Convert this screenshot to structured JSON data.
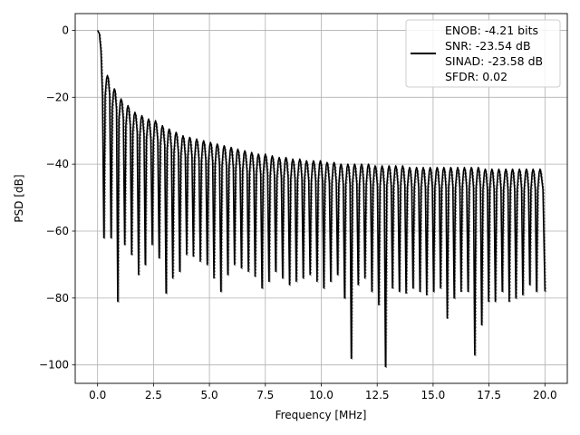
{
  "chart_data": {
    "type": "line",
    "title": "",
    "xlabel": "Frequency [MHz]",
    "ylabel": "PSD [dB]",
    "xlim": [
      -1.0,
      21.0
    ],
    "ylim": [
      -105.5,
      5.0
    ],
    "x_ticks": [
      0.0,
      2.5,
      5.0,
      7.5,
      10.0,
      12.5,
      15.0,
      17.5,
      20.0
    ],
    "x_tick_labels": [
      "0.0",
      "2.5",
      "5.0",
      "7.5",
      "10.0",
      "12.5",
      "15.0",
      "17.5",
      "20.0"
    ],
    "y_ticks": [
      0,
      -20,
      -40,
      -60,
      -80,
      -100
    ],
    "y_tick_labels": [
      "0",
      "−20",
      "−40",
      "−60",
      "−80",
      "−100"
    ],
    "grid": true,
    "line_color": "#000000",
    "legend": {
      "placement": "top-right",
      "entries": [
        "ENOB: -4.21 bits",
        "SNR: -23.54 dB",
        "SINAD: -23.58 dB",
        "SFDR: 0.02"
      ]
    },
    "series": [
      {
        "lobe_peaks": [
          [
            0.0,
            0.0
          ],
          [
            0.44,
            -13.5
          ],
          [
            0.75,
            -17.5
          ],
          [
            1.05,
            -20.5
          ],
          [
            1.36,
            -22.5
          ],
          [
            1.67,
            -24.5
          ],
          [
            1.98,
            -25.5
          ],
          [
            2.28,
            -26.5
          ],
          [
            2.59,
            -27.0
          ],
          [
            2.9,
            -28.5
          ],
          [
            3.2,
            -29.5
          ],
          [
            3.51,
            -30.5
          ],
          [
            3.82,
            -31.5
          ],
          [
            4.12,
            -32.0
          ],
          [
            4.43,
            -32.5
          ],
          [
            4.74,
            -33.0
          ],
          [
            5.05,
            -33.5
          ],
          [
            5.35,
            -34.0
          ],
          [
            5.66,
            -34.5
          ],
          [
            5.97,
            -35.0
          ],
          [
            6.27,
            -35.5
          ],
          [
            6.58,
            -36.0
          ],
          [
            6.89,
            -36.5
          ],
          [
            7.19,
            -37.0
          ],
          [
            7.5,
            -37.0
          ],
          [
            7.81,
            -37.5
          ],
          [
            8.12,
            -38.0
          ],
          [
            8.42,
            -38.0
          ],
          [
            8.73,
            -38.5
          ],
          [
            9.04,
            -38.5
          ],
          [
            9.34,
            -39.0
          ],
          [
            9.65,
            -39.0
          ],
          [
            9.96,
            -39.0
          ],
          [
            10.26,
            -39.5
          ],
          [
            10.57,
            -39.5
          ],
          [
            10.88,
            -40.0
          ],
          [
            11.19,
            -40.0
          ],
          [
            11.49,
            -40.0
          ],
          [
            11.8,
            -40.0
          ],
          [
            12.11,
            -40.0
          ],
          [
            12.41,
            -40.5
          ],
          [
            12.72,
            -40.5
          ],
          [
            13.03,
            -40.5
          ],
          [
            13.33,
            -40.5
          ],
          [
            13.64,
            -40.5
          ],
          [
            13.95,
            -41.0
          ],
          [
            14.26,
            -41.0
          ],
          [
            14.56,
            -41.0
          ],
          [
            14.87,
            -41.0
          ],
          [
            15.18,
            -41.0
          ],
          [
            15.48,
            -41.0
          ],
          [
            15.79,
            -41.0
          ],
          [
            16.1,
            -41.0
          ],
          [
            16.4,
            -41.0
          ],
          [
            16.71,
            -41.0
          ],
          [
            17.02,
            -41.0
          ],
          [
            17.33,
            -41.5
          ],
          [
            17.63,
            -41.5
          ],
          [
            17.94,
            -41.5
          ],
          [
            18.25,
            -41.5
          ],
          [
            18.55,
            -41.5
          ],
          [
            18.86,
            -41.5
          ],
          [
            19.17,
            -41.5
          ],
          [
            19.47,
            -41.5
          ],
          [
            19.78,
            -41.5
          ]
        ],
        "null_minima": [
          [
            0.28,
            -62.0
          ],
          [
            0.6,
            -62.0
          ],
          [
            0.9,
            -81.0
          ],
          [
            1.21,
            -64.0
          ],
          [
            1.52,
            -67.0
          ],
          [
            1.83,
            -73.0
          ],
          [
            2.13,
            -70.0
          ],
          [
            2.44,
            -64.0
          ],
          [
            2.75,
            -68.0
          ],
          [
            3.06,
            -78.5
          ],
          [
            3.36,
            -74.0
          ],
          [
            3.67,
            -72.0
          ],
          [
            3.98,
            -67.0
          ],
          [
            4.28,
            -67.5
          ],
          [
            4.59,
            -69.0
          ],
          [
            4.9,
            -70.0
          ],
          [
            5.2,
            -74.0
          ],
          [
            5.51,
            -78.0
          ],
          [
            5.82,
            -73.0
          ],
          [
            6.12,
            -70.0
          ],
          [
            6.43,
            -71.0
          ],
          [
            6.74,
            -72.0
          ],
          [
            7.04,
            -73.5
          ],
          [
            7.35,
            -77.0
          ],
          [
            7.66,
            -75.0
          ],
          [
            7.96,
            -72.0
          ],
          [
            8.27,
            -74.0
          ],
          [
            8.58,
            -76.0
          ],
          [
            8.88,
            -75.0
          ],
          [
            9.19,
            -74.0
          ],
          [
            9.5,
            -73.0
          ],
          [
            9.81,
            -75.0
          ],
          [
            10.11,
            -77.0
          ],
          [
            10.42,
            -75.0
          ],
          [
            10.73,
            -73.0
          ],
          [
            11.04,
            -80.0
          ],
          [
            11.34,
            -98.0
          ],
          [
            11.65,
            -76.0
          ],
          [
            11.95,
            -74.0
          ],
          [
            12.26,
            -78.0
          ],
          [
            12.57,
            -82.0
          ],
          [
            12.87,
            -100.5
          ],
          [
            13.18,
            -77.0
          ],
          [
            13.49,
            -78.0
          ],
          [
            13.79,
            -78.5
          ],
          [
            14.1,
            -77.0
          ],
          [
            14.41,
            -78.0
          ],
          [
            14.71,
            -79.0
          ],
          [
            15.02,
            -78.0
          ],
          [
            15.33,
            -77.0
          ],
          [
            15.63,
            -86.0
          ],
          [
            15.94,
            -80.0
          ],
          [
            16.25,
            -78.0
          ],
          [
            16.56,
            -78.0
          ],
          [
            16.86,
            -97.0
          ],
          [
            17.17,
            -88.0
          ],
          [
            17.48,
            -81.0
          ],
          [
            17.78,
            -81.0
          ],
          [
            18.09,
            -78.0
          ],
          [
            18.4,
            -81.0
          ],
          [
            18.7,
            -80.0
          ],
          [
            19.01,
            -79.0
          ],
          [
            19.32,
            -76.0
          ],
          [
            19.62,
            -78.0
          ],
          [
            20.0,
            -78.0
          ]
        ]
      }
    ]
  }
}
